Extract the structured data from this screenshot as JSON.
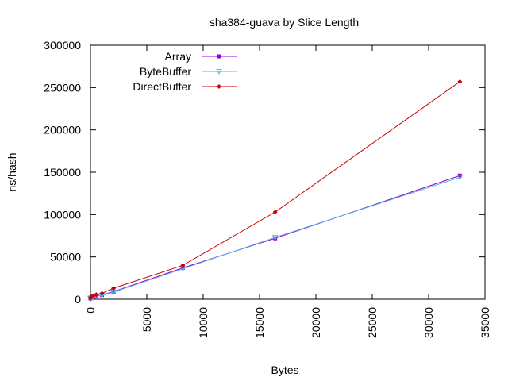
{
  "chart_data": {
    "type": "line",
    "title": "sha384-guava by Slice Length",
    "xlabel": "Bytes",
    "ylabel": "ns/hash",
    "xlim": [
      0,
      35000
    ],
    "ylim": [
      0,
      300000
    ],
    "xticks": [
      0,
      5000,
      10000,
      15000,
      20000,
      25000,
      30000,
      35000
    ],
    "yticks": [
      0,
      50000,
      100000,
      150000,
      200000,
      250000,
      300000
    ],
    "grid": false,
    "legend_position": "top-left",
    "series": [
      {
        "name": "Array",
        "color": "#9400d3",
        "marker": "square",
        "x": [
          1,
          2,
          4,
          8,
          16,
          32,
          64,
          128,
          256,
          512,
          1024,
          2048,
          8192,
          16384,
          32768
        ],
        "y": [
          1000,
          1000,
          1000,
          1100,
          1200,
          1400,
          1500,
          1800,
          2500,
          4000,
          5000,
          9000,
          37000,
          72000,
          146000
        ]
      },
      {
        "name": "ByteBuffer",
        "color": "#56b4e9",
        "marker": "triangle-down",
        "x": [
          1,
          2,
          4,
          8,
          16,
          32,
          64,
          128,
          256,
          512,
          1024,
          2048,
          8192,
          16384,
          32768
        ],
        "y": [
          1000,
          1000,
          1000,
          1100,
          1200,
          1300,
          1500,
          1800,
          2300,
          3500,
          4500,
          8500,
          36000,
          73000,
          144000
        ]
      },
      {
        "name": "DirectBuffer",
        "color": "#cc0000",
        "marker": "diamond",
        "x": [
          1,
          2,
          4,
          8,
          16,
          32,
          64,
          128,
          256,
          512,
          1024,
          2048,
          8192,
          16384,
          32768
        ],
        "y": [
          1200,
          1300,
          1500,
          1700,
          2000,
          2300,
          2600,
          3000,
          4000,
          5500,
          7000,
          13000,
          40000,
          103000,
          257000
        ]
      }
    ]
  }
}
